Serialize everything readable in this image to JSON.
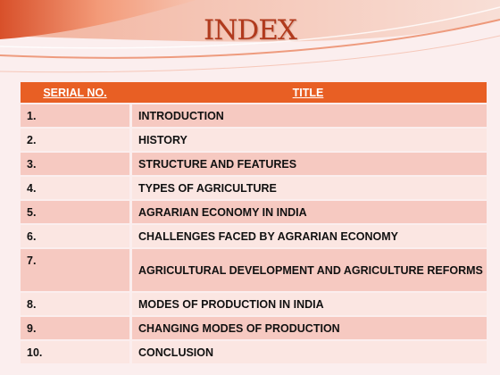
{
  "slide": {
    "title": "INDEX",
    "colors": {
      "header_bg": "#e85f24",
      "row_odd": "#f6c9c1",
      "row_even": "#fbe6e2",
      "title": "#b13a1d"
    }
  },
  "table": {
    "headers": {
      "serial": "SERIAL NO.",
      "title": "TITLE"
    },
    "rows": [
      {
        "no": "1.",
        "title": "INTRODUCTION"
      },
      {
        "no": "2.",
        "title": "HISTORY"
      },
      {
        "no": "3.",
        "title": "STRUCTURE AND FEATURES"
      },
      {
        "no": "4.",
        "title": "TYPES OF AGRICULTURE"
      },
      {
        "no": "5.",
        "title": "AGRARIAN ECONOMY IN INDIA"
      },
      {
        "no": "6.",
        "title": "CHALLENGES FACED BY  AGRARIAN ECONOMY"
      },
      {
        "no": "7.",
        "title": "AGRICULTURAL DEVELOPMENT AND AGRICULTURE REFORMS"
      },
      {
        "no": "8.",
        "title": "MODES OF PRODUCTION IN INDIA"
      },
      {
        "no": "9.",
        "title": "CHANGING MODES OF PRODUCTION"
      },
      {
        "no": "10.",
        "title": "CONCLUSION"
      }
    ]
  }
}
